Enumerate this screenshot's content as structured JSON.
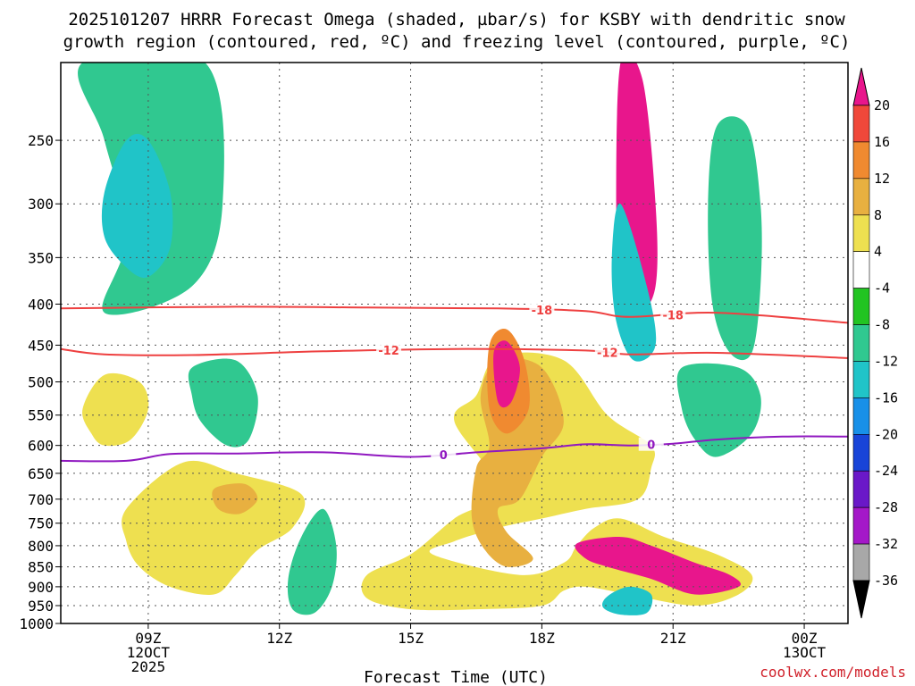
{
  "chart_data": {
    "type": "heatmap",
    "title": "2025101207 HRRR Forecast Omega (shaded, µbar/s) for KSBY with dendritic snow growth region (contoured, red, ºC) and freezing level (contoured, purple, ºC)",
    "title_lines": [
      "2025101207 HRRR Forecast Omega (shaded, µbar/s) for KSBY with dendritic snow",
      "growth region (contoured, red, ºC) and freezing level (contoured, purple, ºC)"
    ],
    "xlabel": "Forecast Time (UTC)",
    "ylabel": "",
    "credit": "coolwx.com/models",
    "x_range_hours_from_07Z": [
      0,
      18
    ],
    "y_range_hPa": [
      1000,
      200
    ],
    "y_ticks": [
      250,
      300,
      350,
      400,
      450,
      500,
      550,
      600,
      650,
      700,
      750,
      800,
      850,
      900,
      950,
      1000
    ],
    "x_ticks": [
      {
        "hour": 2,
        "lines": [
          "09Z",
          "12OCT",
          "2025"
        ]
      },
      {
        "hour": 5,
        "lines": [
          "12Z"
        ]
      },
      {
        "hour": 8,
        "lines": [
          "15Z"
        ]
      },
      {
        "hour": 11,
        "lines": [
          "18Z"
        ]
      },
      {
        "hour": 14,
        "lines": [
          "21Z"
        ]
      },
      {
        "hour": 17,
        "lines": [
          "00Z",
          "13OCT"
        ]
      }
    ],
    "colorbar": {
      "labels": [
        "20",
        "16",
        "12",
        "8",
        "4",
        "-4",
        "-8",
        "-12",
        "-16",
        "-20",
        "-24",
        "-28",
        "-32",
        "-36"
      ],
      "colors": [
        "#e8168c",
        "#f0483a",
        "#f08a30",
        "#e8b040",
        "#eee050",
        "#ffffff",
        "#22c422",
        "#30c890",
        "#20c4c8",
        "#1890e8",
        "#1844d8",
        "#6a18c8",
        "#a418c8",
        "#a8a8a8",
        "#000000"
      ]
    },
    "contours": {
      "dendritic_minus18": {
        "label": "-18",
        "color": "#ee4040",
        "points": [
          [
            0,
            405
          ],
          [
            4,
            403
          ],
          [
            7,
            404
          ],
          [
            10,
            405
          ],
          [
            12,
            408
          ],
          [
            13,
            415
          ],
          [
            15,
            410
          ],
          [
            18,
            422
          ]
        ]
      },
      "dendritic_minus12": {
        "label": "-12",
        "color": "#ee4040",
        "points": [
          [
            0,
            455
          ],
          [
            1,
            462
          ],
          [
            3,
            463
          ],
          [
            6,
            458
          ],
          [
            9,
            455
          ],
          [
            12,
            457
          ],
          [
            13,
            462
          ],
          [
            15,
            460
          ],
          [
            18,
            467
          ]
        ]
      },
      "freezing_0": {
        "label": "0",
        "color": "#9018c0",
        "points": [
          [
            0,
            627
          ],
          [
            1.5,
            627
          ],
          [
            2.5,
            615
          ],
          [
            4,
            614
          ],
          [
            6,
            612
          ],
          [
            8,
            620
          ],
          [
            9.5,
            612
          ],
          [
            11,
            605
          ],
          [
            12,
            598
          ],
          [
            13,
            600
          ],
          [
            14,
            597
          ],
          [
            15,
            590
          ],
          [
            16.5,
            585
          ],
          [
            18,
            585
          ]
        ]
      }
    },
    "shaded_regions_level": [
      {
        "level": -8,
        "points": [
          [
            0.5,
            200
          ],
          [
            1,
            250
          ],
          [
            1.5,
            330
          ],
          [
            1,
            410
          ],
          [
            3,
            380
          ],
          [
            3.7,
            300
          ],
          [
            3.3,
            200
          ]
        ]
      },
      {
        "level": -12,
        "points": [
          [
            1,
            290
          ],
          [
            1.5,
            250
          ],
          [
            2,
            250
          ],
          [
            2.5,
            290
          ],
          [
            2.5,
            340
          ],
          [
            2,
            370
          ],
          [
            1.5,
            360
          ],
          [
            1,
            330
          ]
        ]
      },
      {
        "level": 4,
        "points": [
          [
            9.5,
            520
          ],
          [
            10,
            465
          ],
          [
            11.5,
            470
          ],
          [
            12.5,
            550
          ],
          [
            13.5,
            600
          ],
          [
            13.5,
            640
          ],
          [
            13.2,
            700
          ],
          [
            12,
            720
          ],
          [
            11,
            740
          ],
          [
            10,
            760
          ],
          [
            9,
            790
          ],
          [
            8.5,
            820
          ],
          [
            10.5,
            870
          ],
          [
            11.5,
            840
          ],
          [
            11.8,
            800
          ],
          [
            12.2,
            760
          ],
          [
            12.8,
            740
          ],
          [
            13.8,
            780
          ],
          [
            15,
            820
          ],
          [
            15.8,
            870
          ],
          [
            15.5,
            920
          ],
          [
            14.5,
            950
          ],
          [
            13,
            920
          ],
          [
            12,
            900
          ],
          [
            11.5,
            910
          ],
          [
            11,
            950
          ],
          [
            9.5,
            960
          ],
          [
            8,
            960
          ],
          [
            7,
            930
          ],
          [
            7,
            870
          ],
          [
            8,
            820
          ],
          [
            9,
            740
          ],
          [
            10,
            680
          ],
          [
            9,
            560
          ]
        ]
      },
      {
        "level": 8,
        "points": [
          [
            9.6,
            520
          ],
          [
            10,
            470
          ],
          [
            11,
            480
          ],
          [
            11.5,
            560
          ],
          [
            11,
            620
          ],
          [
            10.5,
            700
          ],
          [
            10,
            720
          ],
          [
            10.2,
            770
          ],
          [
            10.8,
            830
          ],
          [
            10.2,
            850
          ],
          [
            9.7,
            810
          ],
          [
            9.4,
            740
          ],
          [
            9.5,
            640
          ],
          [
            9.8,
            600
          ]
        ]
      },
      {
        "level": 12,
        "points": [
          [
            9.8,
            450
          ],
          [
            10.2,
            430
          ],
          [
            10.6,
            470
          ],
          [
            10.7,
            540
          ],
          [
            10.2,
            580
          ],
          [
            9.8,
            540
          ]
        ]
      },
      {
        "level": 20,
        "points": [
          [
            9.9,
            460
          ],
          [
            10.2,
            445
          ],
          [
            10.5,
            480
          ],
          [
            10.3,
            530
          ],
          [
            10,
            530
          ]
        ]
      },
      {
        "level": 20,
        "points": [
          [
            11.8,
            795
          ],
          [
            12.8,
            780
          ],
          [
            13.5,
            800
          ],
          [
            14.5,
            840
          ],
          [
            15.3,
            870
          ],
          [
            15.5,
            900
          ],
          [
            14.5,
            920
          ],
          [
            13.5,
            880
          ],
          [
            12.5,
            850
          ],
          [
            12,
            830
          ]
        ]
      },
      {
        "level": 20,
        "points": [
          [
            12.8,
            200
          ],
          [
            13.3,
            210
          ],
          [
            13.6,
            300
          ],
          [
            13.6,
            380
          ],
          [
            13.2,
            410
          ],
          [
            12.8,
            380
          ],
          [
            12.7,
            300
          ]
        ]
      },
      {
        "level": -12,
        "points": [
          [
            12.8,
            300
          ],
          [
            13.4,
            380
          ],
          [
            13.6,
            450
          ],
          [
            13.1,
            470
          ],
          [
            12.7,
            420
          ],
          [
            12.6,
            350
          ]
        ]
      },
      {
        "level": -8,
        "points": [
          [
            15,
            240
          ],
          [
            15.7,
            240
          ],
          [
            16,
            300
          ],
          [
            16,
            380
          ],
          [
            15.8,
            460
          ],
          [
            15.3,
            460
          ],
          [
            14.9,
            400
          ],
          [
            14.8,
            300
          ]
        ]
      },
      {
        "level": -8,
        "points": [
          [
            3,
            480
          ],
          [
            4,
            470
          ],
          [
            4.5,
            520
          ],
          [
            4.3,
            590
          ],
          [
            3.8,
            600
          ],
          [
            3.2,
            560
          ],
          [
            3,
            520
          ]
        ]
      },
      {
        "level": -8,
        "points": [
          [
            14.2,
            480
          ],
          [
            15.5,
            480
          ],
          [
            16,
            520
          ],
          [
            15.8,
            580
          ],
          [
            15,
            620
          ],
          [
            14.5,
            590
          ],
          [
            14.2,
            540
          ]
        ]
      },
      {
        "level": -8,
        "points": [
          [
            5.5,
            780
          ],
          [
            6,
            720
          ],
          [
            6.3,
            800
          ],
          [
            6.2,
            900
          ],
          [
            5.8,
            970
          ],
          [
            5.3,
            960
          ],
          [
            5.2,
            880
          ]
        ]
      },
      {
        "level": -12,
        "points": [
          [
            12.5,
            925
          ],
          [
            13,
            900
          ],
          [
            13.5,
            920
          ],
          [
            13.4,
            970
          ],
          [
            12.8,
            975
          ],
          [
            12.4,
            955
          ]
        ]
      },
      {
        "level": 4,
        "points": [
          [
            0.5,
            540
          ],
          [
            1,
            490
          ],
          [
            1.8,
            500
          ],
          [
            2,
            540
          ],
          [
            1.6,
            590
          ],
          [
            1,
            600
          ],
          [
            0.7,
            580
          ]
        ]
      },
      {
        "level": 4,
        "points": [
          [
            1.5,
            720
          ],
          [
            2.8,
            630
          ],
          [
            4,
            650
          ],
          [
            5.5,
            690
          ],
          [
            5.3,
            760
          ],
          [
            4.5,
            810
          ],
          [
            4,
            870
          ],
          [
            3.5,
            920
          ],
          [
            2.5,
            900
          ],
          [
            1.8,
            850
          ],
          [
            1.5,
            790
          ]
        ]
      },
      {
        "level": 8,
        "points": [
          [
            3.5,
            680
          ],
          [
            4.2,
            670
          ],
          [
            4.5,
            700
          ],
          [
            4.1,
            730
          ],
          [
            3.6,
            720
          ]
        ]
      }
    ]
  }
}
